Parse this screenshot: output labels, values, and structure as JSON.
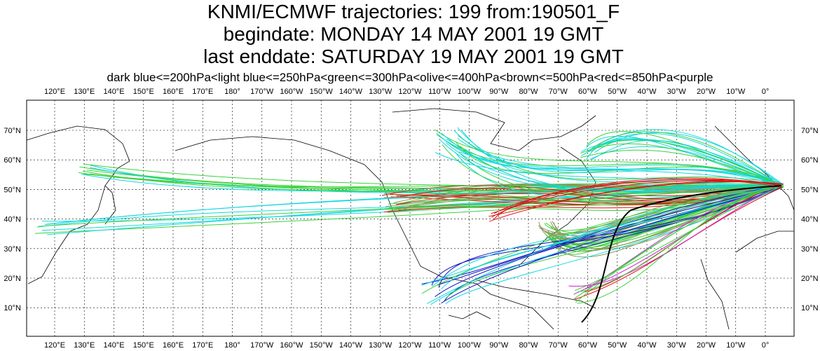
{
  "header": {
    "title": "KNMI/ECMWF trajectories:  199 from:190501_F",
    "begindate": "begindate:  MONDAY    14 MAY       2001 19 GMT",
    "enddate": "last enddate:  SATURDAY  19 MAY       2001 19 GMT",
    "legend": "dark blue<=200hPa<light blue<=250hPa<green<=300hPa<olive<=400hPa<brown<=500hPa<red<=850hPa<purple"
  },
  "map": {
    "longitude_labels": [
      "120°E",
      "130°E",
      "140°E",
      "150°E",
      "160°E",
      "170°E",
      "180°",
      "170°W",
      "160°W",
      "150°W",
      "140°W",
      "130°W",
      "120°W",
      "110°W",
      "100°W",
      "90°W",
      "80°W",
      "70°W",
      "60°W",
      "50°W",
      "40°W",
      "30°W",
      "20°W",
      "10°W",
      "0°"
    ],
    "latitude_labels": [
      "70°N",
      "60°N",
      "50°N",
      "40°N",
      "30°N",
      "20°N",
      "10°N"
    ]
  }
}
